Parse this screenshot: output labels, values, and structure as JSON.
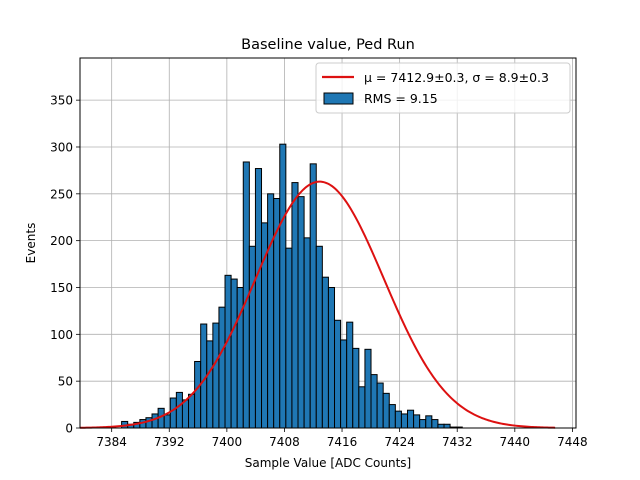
{
  "chart_data": {
    "type": "bar",
    "title": "Baseline value, Ped Run",
    "xlabel": "Sample Value [ADC Counts]",
    "ylabel": "Events",
    "xlim": [
      7379.6,
      7448.5
    ],
    "ylim": [
      0,
      395
    ],
    "grid": true,
    "legend_position": "top-right",
    "x_ticks": [
      7384,
      7392,
      7400,
      7408,
      7416,
      7424,
      7432,
      7440,
      7448
    ],
    "y_ticks": [
      0,
      50,
      100,
      150,
      200,
      250,
      300,
      350
    ],
    "histogram": {
      "name": "RMS = 9.15",
      "color": "#1f77b4",
      "edge_color": "#000000",
      "bin_start": 7382.0,
      "bin_width": 0.845,
      "counts": [
        0,
        1,
        1,
        0,
        7,
        4,
        6,
        9,
        11,
        15,
        21,
        14,
        32,
        38,
        30,
        36,
        71,
        111,
        93,
        112,
        129,
        163,
        159,
        150,
        284,
        194,
        277,
        219,
        250,
        245,
        303,
        192,
        262,
        247,
        203,
        282,
        194,
        161,
        150,
        115,
        94,
        113,
        85,
        44,
        84,
        57,
        48,
        37,
        25,
        18,
        15,
        19,
        14,
        9,
        13,
        9,
        4,
        4,
        1,
        1,
        0
      ]
    },
    "fit": {
      "name": "μ = 7412.9±0.3, σ = 8.9±0.3",
      "color": "#dd1111",
      "mu": 7412.9,
      "sigma": 8.9,
      "amplitude": 263,
      "x_range": [
        7379.6,
        7445.6
      ]
    },
    "legend": {
      "fit_label": "μ = 7412.9±0.3, σ = 8.9±0.3",
      "hist_label": "RMS = 9.15"
    }
  }
}
